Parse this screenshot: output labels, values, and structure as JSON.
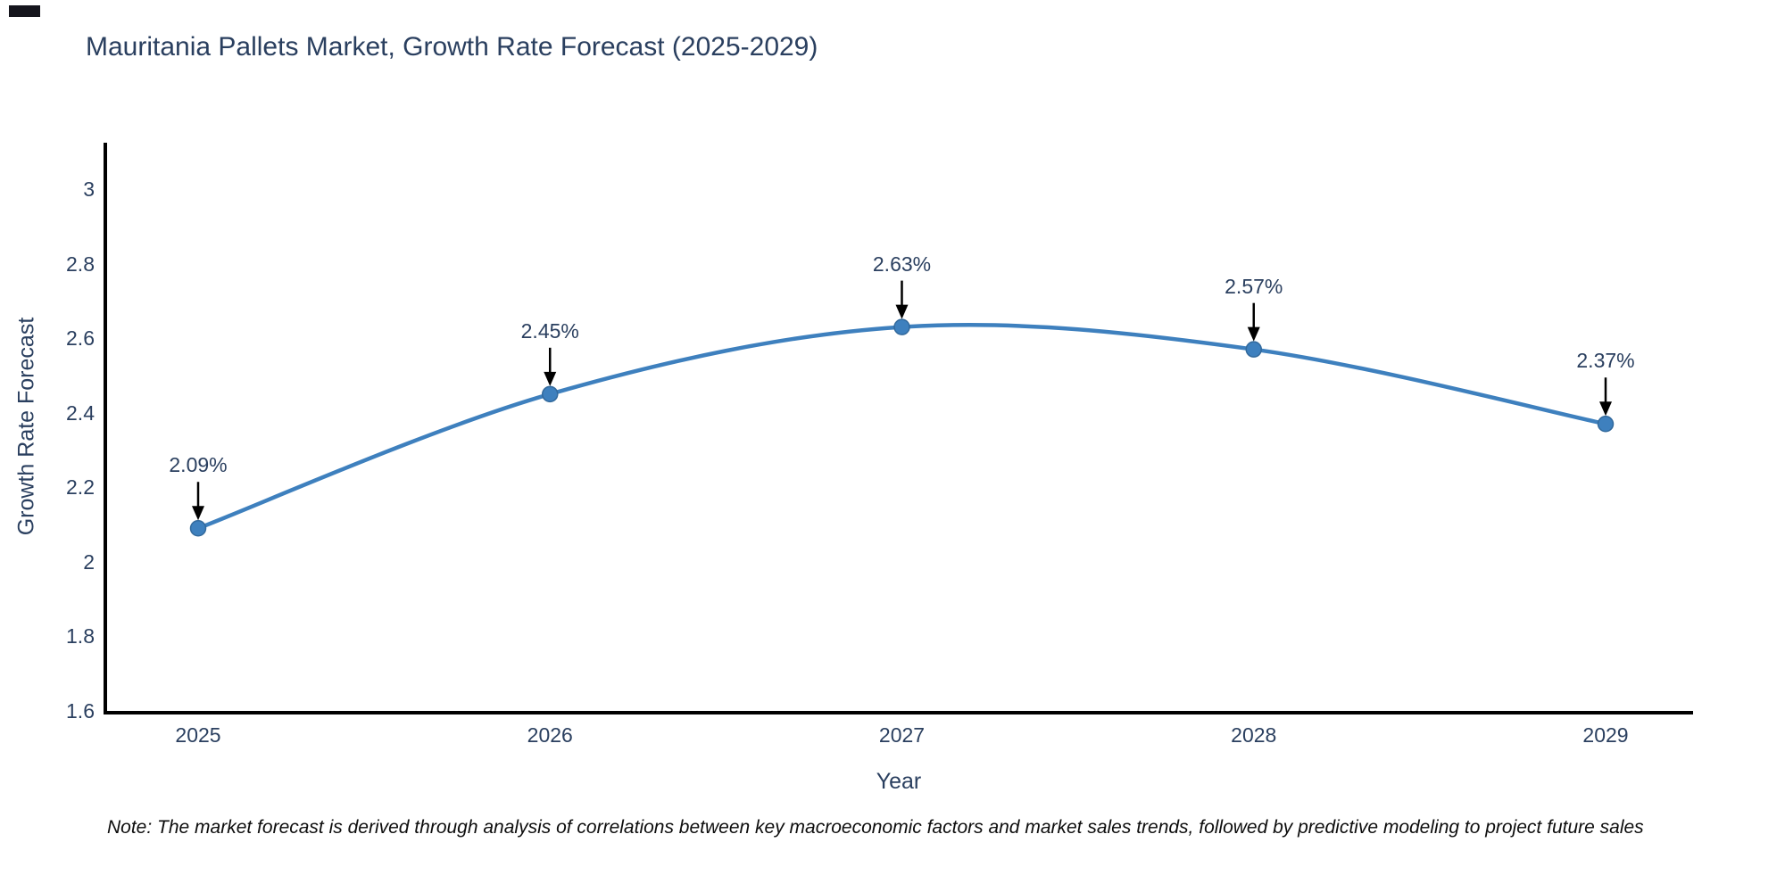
{
  "chart_data": {
    "type": "line",
    "title": "Mauritania Pallets Market, Growth Rate Forecast (2025-2029)",
    "xlabel": "Year",
    "ylabel": "Growth Rate Forecast",
    "categories": [
      "2025",
      "2026",
      "2027",
      "2028",
      "2029"
    ],
    "series": [
      {
        "name": "Growth Rate Forecast",
        "values": [
          2.09,
          2.45,
          2.63,
          2.57,
          2.37
        ],
        "point_labels": [
          "2.09%",
          "2.45%",
          "2.63%",
          "2.57%",
          "2.37%"
        ]
      }
    ],
    "ylim": [
      1.6,
      3.08
    ],
    "ytick_values": [
      3,
      2.8,
      2.6,
      2.4,
      2.2,
      2,
      1.8,
      1.6
    ],
    "ytick_labels": [
      "3",
      "2.8",
      "2.6",
      "2.4",
      "2.2",
      "2",
      "1.8",
      "1.6"
    ],
    "grid": false,
    "legend_position": "none",
    "line_shape": "spline",
    "colors": {
      "line": "#3e80be",
      "marker_fill": "#3e80be",
      "marker_edge": "#32699c",
      "axis": "#000000",
      "tick_text": "#2a3f5f",
      "annotation_text": "#2a3f5f",
      "arrow": "#000000",
      "background": "#ffffff"
    }
  },
  "note": {
    "text": "Note: The market forecast is derived through analysis of correlations between key macroeconomic factors and market sales trends, followed by predictive modeling to project future sales"
  }
}
